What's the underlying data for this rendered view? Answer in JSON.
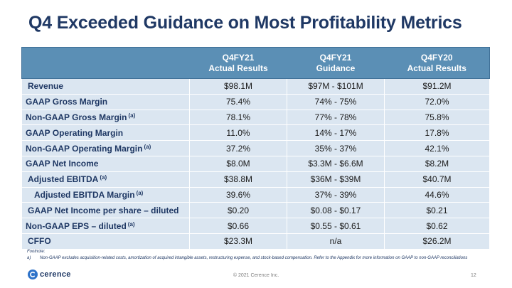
{
  "slide": {
    "title": "Q4 Exceeded Guidance on Most Profitability Metrics"
  },
  "table": {
    "headers": [
      {
        "line1": "Q4FY21",
        "line2": "Actual Results"
      },
      {
        "line1": "Q4FY21",
        "line2": "Guidance"
      },
      {
        "line1": "Q4FY20",
        "line2": "Actual Results"
      }
    ],
    "rows": [
      {
        "label": "Revenue",
        "note": "",
        "q4fy21_actual": "$98.1M",
        "q4fy21_guidance": "$97M - $101M",
        "q4fy20_actual": "$91.2M"
      },
      {
        "label": "GAAP Gross Margin",
        "note": "",
        "q4fy21_actual": "75.4%",
        "q4fy21_guidance": "74% - 75%",
        "q4fy20_actual": "72.0%"
      },
      {
        "label": "Non-GAAP Gross Margin",
        "note": "(a)",
        "q4fy21_actual": "78.1%",
        "q4fy21_guidance": "77% - 78%",
        "q4fy20_actual": "75.8%"
      },
      {
        "label": "GAAP Operating Margin",
        "note": "",
        "q4fy21_actual": "11.0%",
        "q4fy21_guidance": "14% - 17%",
        "q4fy20_actual": "17.8%"
      },
      {
        "label": "Non-GAAP Operating Margin",
        "note": "(a)",
        "q4fy21_actual": "37.2%",
        "q4fy21_guidance": "35% - 37%",
        "q4fy20_actual": "42.1%"
      },
      {
        "label": "GAAP Net Income",
        "note": "",
        "q4fy21_actual": "$8.0M",
        "q4fy21_guidance": "$3.3M - $6.6M",
        "q4fy20_actual": "$8.2M"
      },
      {
        "label": "Adjusted EBITDA",
        "note": "(a)",
        "q4fy21_actual": "$38.8M",
        "q4fy21_guidance": "$36M - $39M",
        "q4fy20_actual": "$40.7M"
      },
      {
        "label": "Adjusted EBITDA Margin",
        "note": "(a)",
        "q4fy21_actual": "39.6%",
        "q4fy21_guidance": "37% - 39%",
        "q4fy20_actual": "44.6%"
      },
      {
        "label": "GAAP Net Income per share – diluted",
        "note": "",
        "q4fy21_actual": "$0.20",
        "q4fy21_guidance": "$0.08 - $0.17",
        "q4fy20_actual": "$0.21"
      },
      {
        "label": "Non-GAAP EPS – diluted",
        "note": "(a)",
        "q4fy21_actual": "$0.66",
        "q4fy21_guidance": "$0.55 - $0.61",
        "q4fy20_actual": "$0.62"
      },
      {
        "label": "CFFO",
        "note": "",
        "q4fy21_actual": "$23.3M",
        "q4fy21_guidance": "n/a",
        "q4fy20_actual": "$26.2M"
      }
    ]
  },
  "footnote": {
    "title": "Footnote:",
    "items": [
      {
        "marker": "a)",
        "text": "Non-GAAP excludes acquisition-related costs, amortization of acquired intangible assets, restructuring expense, and stock-based compensation.   Refer to the Appendix for more information on GAAP to non-GAAP reconciliations"
      }
    ]
  },
  "footer": {
    "brand": "cerence",
    "copyright": "© 2021 Cerence Inc.",
    "page_number": "12"
  },
  "colors": {
    "title": "#1f3864",
    "header_fill": "#5b8fb5",
    "row_fill": "#dbe6f1",
    "logo_blue": "#2f73c9"
  }
}
